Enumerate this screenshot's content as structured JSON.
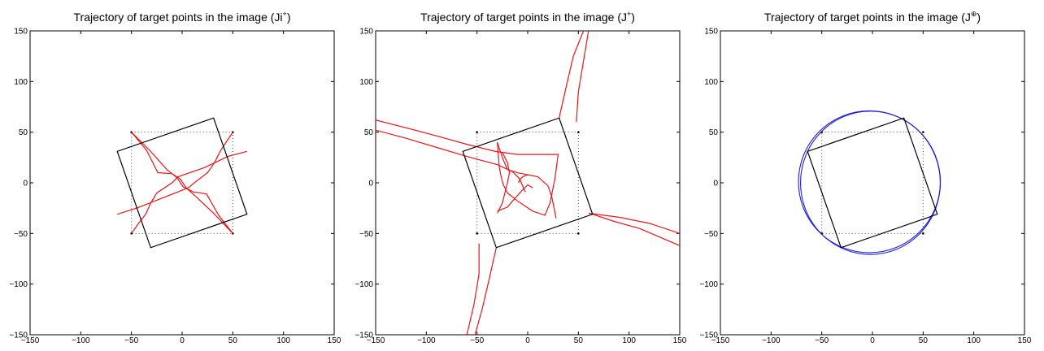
{
  "chart_data": [
    {
      "type": "line",
      "title": "Trajectory of target points in the image (Ji",
      "title_superscript": "+",
      "title_suffix": ")",
      "xlim": [
        -150,
        150
      ],
      "ylim": [
        -150,
        150
      ],
      "xticks": [
        -150,
        -100,
        -50,
        0,
        50,
        100,
        150
      ],
      "yticks": [
        -150,
        -100,
        -50,
        0,
        50,
        100,
        150
      ],
      "grid": false,
      "initial_square": [
        [
          -50,
          50
        ],
        [
          50,
          50
        ],
        [
          50,
          -50
        ],
        [
          -50,
          -50
        ]
      ],
      "final_square": [
        [
          31,
          64
        ],
        [
          64,
          -31
        ],
        [
          -31,
          -64
        ],
        [
          -64,
          31
        ]
      ],
      "trajectory_color": "#e8161a",
      "trajectories": [
        [
          [
            -50,
            50
          ],
          [
            -35,
            32
          ],
          [
            -24,
            10
          ],
          [
            -10,
            9
          ],
          [
            -2,
            4
          ],
          [
            4,
            -5
          ],
          [
            14,
            -14
          ],
          [
            31,
            -30
          ],
          [
            50,
            -50
          ]
        ],
        [
          [
            50,
            50
          ],
          [
            44,
            41
          ],
          [
            38,
            32
          ],
          [
            32,
            20
          ],
          [
            25,
            10
          ],
          [
            12,
            0
          ],
          [
            6,
            -5
          ],
          [
            -22,
            -16
          ],
          [
            -45,
            -25
          ],
          [
            -64,
            -31
          ]
        ],
        [
          [
            50,
            -50
          ],
          [
            36,
            -32
          ],
          [
            24,
            -11
          ],
          [
            11,
            -9
          ],
          [
            1,
            -4
          ],
          [
            -5,
            5
          ],
          [
            -15,
            13
          ],
          [
            -31,
            31
          ],
          [
            -50,
            50
          ]
        ],
        [
          [
            -50,
            -50
          ],
          [
            -43,
            -40
          ],
          [
            -36,
            -31
          ],
          [
            -31,
            -20
          ],
          [
            -25,
            -10
          ],
          [
            -10,
            0
          ],
          [
            -4,
            6
          ],
          [
            22,
            15
          ],
          [
            45,
            26
          ],
          [
            64,
            31
          ]
        ]
      ]
    },
    {
      "type": "line",
      "title": "Trajectory of target points in the image (J",
      "title_superscript": "+",
      "title_suffix": ")",
      "xlim": [
        -150,
        150
      ],
      "ylim": [
        -150,
        150
      ],
      "xticks": [
        -150,
        -100,
        -50,
        0,
        50,
        100,
        150
      ],
      "yticks": [
        -150,
        -100,
        -50,
        0,
        50,
        100,
        150
      ],
      "grid": false,
      "initial_square": [
        [
          -50,
          50
        ],
        [
          50,
          50
        ],
        [
          50,
          -50
        ],
        [
          -50,
          -50
        ]
      ],
      "final_square": [
        [
          31,
          64
        ],
        [
          64,
          -31
        ],
        [
          -31,
          -64
        ],
        [
          -64,
          31
        ]
      ],
      "trajectory_color": "#e8161a",
      "trajectories": [
        [
          [
            -150,
            52
          ],
          [
            -120,
            44
          ],
          [
            -90,
            35
          ],
          [
            -60,
            26
          ],
          [
            -30,
            18
          ],
          [
            -15,
            11
          ],
          [
            -8,
            4
          ],
          [
            -5,
            -3
          ],
          [
            -3,
            -8
          ],
          [
            -2,
            -9
          ]
        ],
        [
          [
            -150,
            62
          ],
          [
            -115,
            53
          ],
          [
            -85,
            45
          ],
          [
            -60,
            38
          ],
          [
            -32,
            31
          ],
          [
            -10,
            28
          ],
          [
            10,
            28
          ],
          [
            30,
            28
          ],
          [
            27,
            5
          ],
          [
            22,
            -20
          ],
          [
            17,
            -32
          ],
          [
            5,
            -28
          ],
          [
            -10,
            -18
          ],
          [
            -20,
            -10
          ],
          [
            -24,
            -2
          ],
          [
            -26,
            5
          ],
          [
            -28,
            15
          ],
          [
            -30,
            40
          ]
        ],
        [
          [
            28,
            -35
          ],
          [
            24,
            -15
          ],
          [
            20,
            -3
          ],
          [
            10,
            6
          ],
          [
            0,
            8
          ],
          [
            -5,
            6
          ],
          [
            -8,
            3
          ],
          [
            -9,
            0
          ]
        ],
        [
          [
            0,
            8
          ],
          [
            -10,
            10
          ],
          [
            -20,
            13
          ],
          [
            -25,
            25
          ],
          [
            -30,
            40
          ]
        ],
        [
          [
            -30,
            -30
          ],
          [
            -25,
            -20
          ],
          [
            -20,
            0
          ],
          [
            -18,
            10
          ],
          [
            -20,
            20
          ],
          [
            -25,
            30
          ]
        ],
        [
          [
            5,
            -5
          ],
          [
            0,
            -2
          ],
          [
            -6,
            -8
          ],
          [
            -15,
            -18
          ],
          [
            -20,
            -24
          ],
          [
            -30,
            -28
          ]
        ],
        [
          [
            64,
            -31
          ],
          [
            85,
            -38
          ],
          [
            110,
            -45
          ],
          [
            150,
            -62
          ]
        ],
        [
          [
            60,
            -30
          ],
          [
            90,
            -34
          ],
          [
            120,
            -40
          ],
          [
            150,
            -50
          ]
        ],
        [
          [
            31,
            64
          ],
          [
            38,
            95
          ],
          [
            45,
            125
          ],
          [
            55,
            150
          ]
        ],
        [
          [
            48,
            60
          ],
          [
            50,
            90
          ],
          [
            55,
            120
          ],
          [
            60,
            150
          ]
        ],
        [
          [
            -31,
            -64
          ],
          [
            -38,
            -95
          ],
          [
            -45,
            -125
          ],
          [
            -52,
            -150
          ]
        ],
        [
          [
            -48,
            -60
          ],
          [
            -48,
            -90
          ],
          [
            -53,
            -120
          ],
          [
            -60,
            -150
          ]
        ]
      ]
    },
    {
      "type": "line",
      "title": "Trajectory of target points in the image (J",
      "title_superscript": "⊕",
      "title_suffix": ")",
      "xlim": [
        -150,
        150
      ],
      "ylim": [
        -150,
        150
      ],
      "xticks": [
        -150,
        -100,
        -50,
        0,
        50,
        100,
        150
      ],
      "yticks": [
        -150,
        -100,
        -50,
        0,
        50,
        100,
        150
      ],
      "grid": false,
      "initial_square": [
        [
          -50,
          50
        ],
        [
          50,
          50
        ],
        [
          50,
          -50
        ],
        [
          -50,
          -50
        ]
      ],
      "final_square": [
        [
          31,
          64
        ],
        [
          64,
          -31
        ],
        [
          -31,
          -64
        ],
        [
          -64,
          31
        ]
      ],
      "trajectory_color": "#1f1fd6",
      "circle_center": [
        -3,
        1
      ],
      "circle_radius": 70
    }
  ]
}
